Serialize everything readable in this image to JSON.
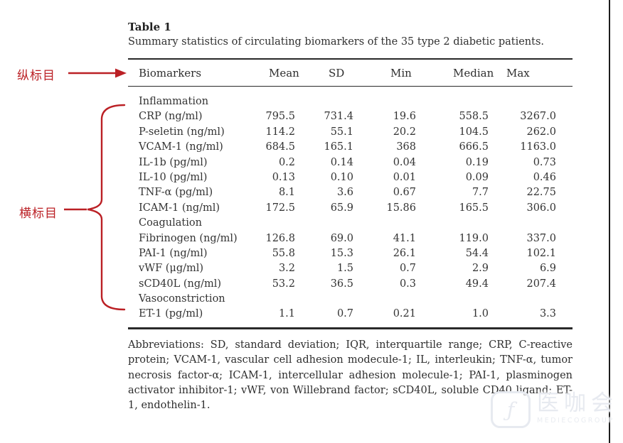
{
  "page": {
    "background": "#ffffff",
    "accent_red": "#bb2025",
    "rule_color": "#292929"
  },
  "annotations": {
    "column_heading_label": "纵标目",
    "row_heading_label": "横标目"
  },
  "table": {
    "title": "Table 1",
    "caption": "Summary statistics of circulating biomarkers of the 35 type 2 diabetic patients.",
    "columns": [
      "Biomarkers",
      "Mean",
      "SD",
      "Min",
      "Median",
      "Max"
    ],
    "rows": [
      {
        "label": "Inflammation"
      },
      {
        "label": "CRP (ng/ml)",
        "values": [
          "795.5",
          "731.4",
          "19.6",
          "558.5",
          "3267.0"
        ]
      },
      {
        "label": "P-seletin (ng/ml)",
        "values": [
          "114.2",
          "55.1",
          "20.2",
          "104.5",
          "262.0"
        ]
      },
      {
        "label": "VCAM-1 (ng/ml)",
        "values": [
          "684.5",
          "165.1",
          "368",
          "666.5",
          "1163.0"
        ]
      },
      {
        "label": "IL-1b (pg/ml)",
        "values": [
          "0.2",
          "0.14",
          "0.04",
          "0.19",
          "0.73"
        ]
      },
      {
        "label": "IL-10 (pg/ml)",
        "values": [
          "0.13",
          "0.10",
          "0.01",
          "0.09",
          "0.46"
        ]
      },
      {
        "label": "TNF-α (pg/ml)",
        "values": [
          "8.1",
          "3.6",
          "0.67",
          "7.7",
          "22.75"
        ]
      },
      {
        "label": "ICAM-1 (ng/ml)",
        "values": [
          "172.5",
          "65.9",
          "15.86",
          "165.5",
          "306.0"
        ]
      },
      {
        "label": "Coagulation"
      },
      {
        "label": "Fibrinogen (ng/ml)",
        "values": [
          "126.8",
          "69.0",
          "41.1",
          "119.0",
          "337.0"
        ]
      },
      {
        "label": "PAI-1 (ng/ml)",
        "values": [
          "55.8",
          "15.3",
          "26.1",
          "54.4",
          "102.1"
        ]
      },
      {
        "label": "vWF (μg/ml)",
        "values": [
          "3.2",
          "1.5",
          "0.7",
          "2.9",
          "6.9"
        ]
      },
      {
        "label": "sCD40L (ng/ml)",
        "values": [
          "53.2",
          "36.5",
          "0.3",
          "49.4",
          "207.4"
        ]
      },
      {
        "label": "Vasoconstriction"
      },
      {
        "label": "ET-1 (pg/ml)",
        "values": [
          "1.1",
          "0.7",
          "0.21",
          "1.0",
          "3.3"
        ]
      }
    ],
    "footnote": "Abbreviations: SD, standard deviation; IQR, interquartile range; CRP, C-reactive protein; VCAM-1, vascular cell adhesion modecule-1; IL, interleukin; TNF-α, tumor necrosis factor-α; ICAM-1, intercellular adhesion molecule-1; PAI-1, plasminogen activator inhibitor-1; vWF, von Willebrand factor; sCD40L, soluble CD40 ligand; ET-1, endothelin-1."
  },
  "watermark": {
    "logo_glyph": "ƒ",
    "brand": "医咖会",
    "subtext": "MEDIECOGROUP"
  }
}
